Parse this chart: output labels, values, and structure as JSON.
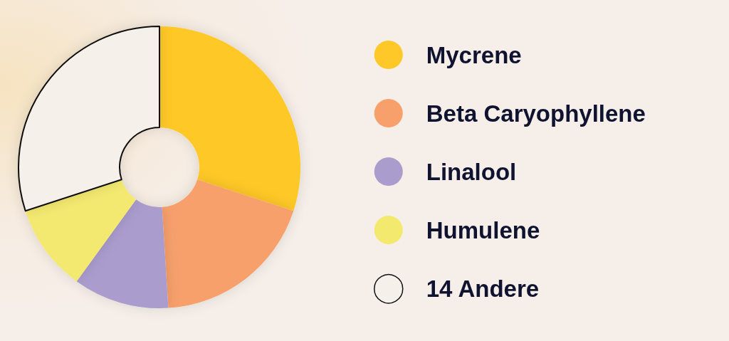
{
  "chart_data": {
    "type": "donut",
    "categories": [
      "Mycrene",
      "Beta Caryophyllene",
      "Linalool",
      "Humulene",
      "14 Andere"
    ],
    "values": [
      30,
      19,
      11,
      10,
      30
    ],
    "colors": [
      "#fec828",
      "#f7a06c",
      "#aa9ccd",
      "#f4e96f",
      "#f6f0eb"
    ],
    "legend": "right"
  }
}
